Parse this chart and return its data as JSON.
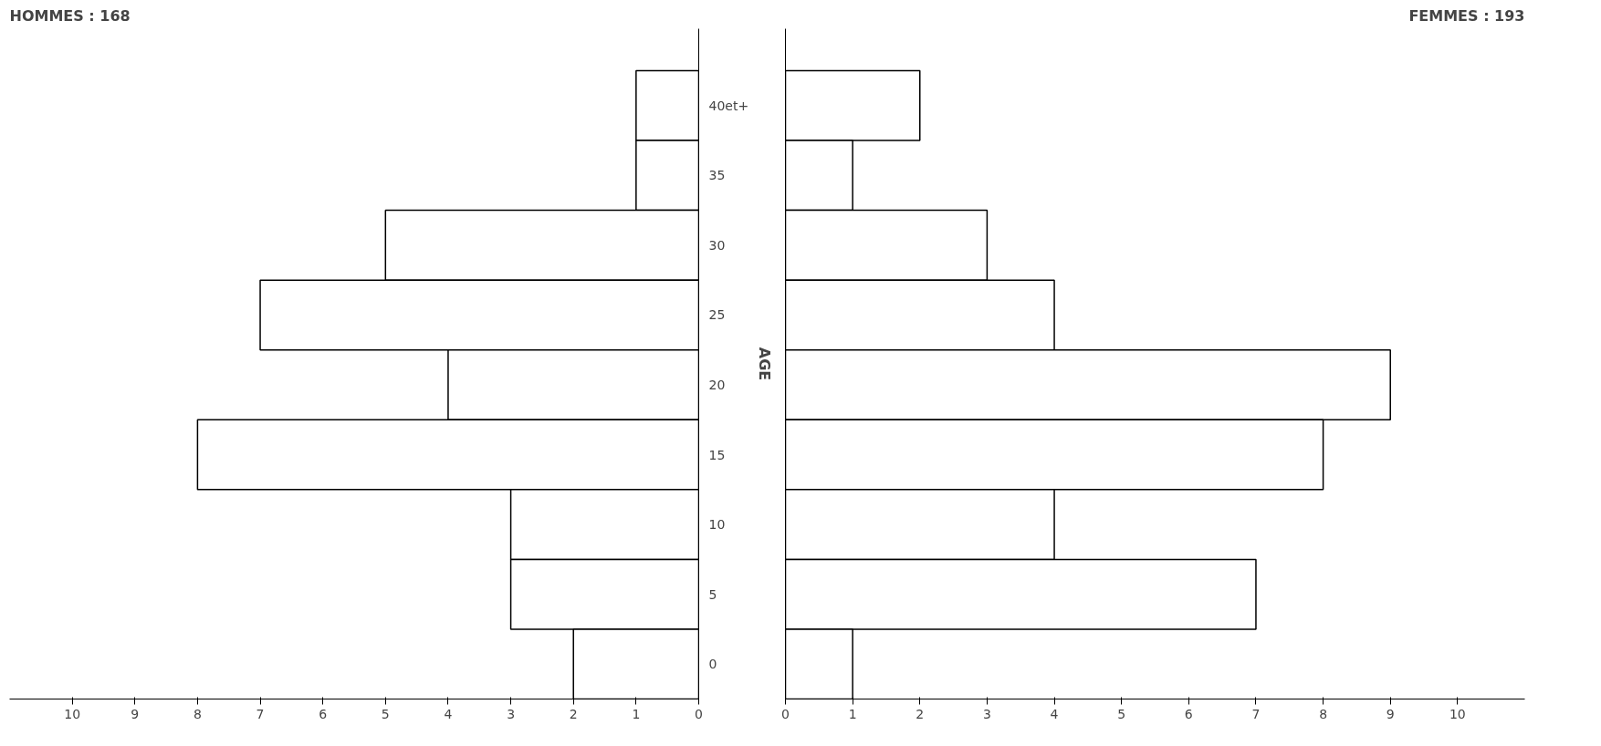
{
  "chart_data": [
    {
      "type": "bar",
      "orientation": "horizontal",
      "title": "HOMMES : 168",
      "ylabel": "AGE",
      "categories": [
        "40et+",
        "35",
        "30",
        "25",
        "20",
        "15",
        "10",
        "5",
        "0"
      ],
      "values": [
        1,
        1,
        5,
        7,
        4,
        8,
        3,
        3,
        2
      ],
      "color": "#ffffff",
      "xlim": [
        11,
        0
      ],
      "xticks": [
        0,
        1,
        2,
        3,
        4,
        5,
        6,
        7,
        8,
        9,
        10
      ],
      "grid": false
    },
    {
      "type": "bar",
      "orientation": "horizontal",
      "title": "FEMMES : 193",
      "categories": [
        null,
        null,
        null,
        null,
        null,
        null,
        null,
        null,
        null
      ],
      "values": [
        2,
        1,
        3,
        4,
        9,
        8,
        4,
        7,
        1
      ],
      "color": "#ffffff",
      "xlim": [
        0,
        11
      ],
      "xticks": [
        0,
        1,
        2,
        3,
        4,
        5,
        6,
        7,
        8,
        9,
        10
      ],
      "grid": false
    }
  ]
}
